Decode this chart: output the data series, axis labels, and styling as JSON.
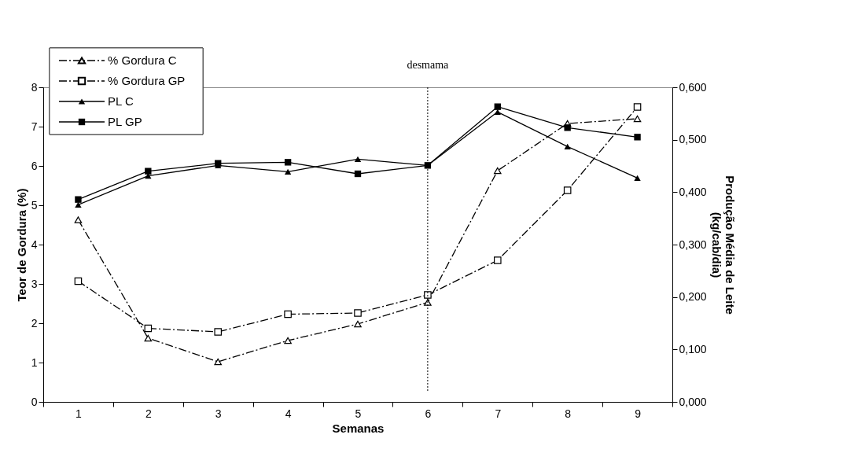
{
  "chart_data": {
    "type": "line",
    "xlabel": "Semanas",
    "ylabel": "Teor de Gordura (%)",
    "y2label": "Produção Média de Leite\n(kg/cab/dia)",
    "categories": [
      "1",
      "2",
      "3",
      "4",
      "5",
      "6",
      "7",
      "8",
      "9"
    ],
    "series": [
      {
        "name": "% Gordura C",
        "color": "#000000",
        "marker": "triangle",
        "line_style": "dashed",
        "values": [
          4.63,
          1.62,
          1.02,
          1.56,
          1.98,
          2.53,
          5.88,
          7.08,
          7.2
        ]
      },
      {
        "name": "% Gordura GP",
        "color": "#000000",
        "marker": "square",
        "line_style": "dashed",
        "values": [
          3.07,
          1.87,
          1.78,
          2.23,
          2.26,
          2.72,
          3.6,
          5.38,
          7.5
        ]
      },
      {
        "name": "PL C",
        "color": "#000000",
        "marker": "triangle",
        "line_style": "solid",
        "axis": "y2",
        "values": [
          0.376,
          0.431,
          0.451,
          0.439,
          0.463,
          0.451,
          0.553,
          0.487,
          0.427
        ]
      },
      {
        "name": "PL GP",
        "color": "#000000",
        "marker": "square",
        "line_style": "solid",
        "axis": "y2",
        "values": [
          0.386,
          0.44,
          0.455,
          0.457,
          0.435,
          0.451,
          0.563,
          0.523,
          0.505
        ]
      }
    ],
    "ylim": [
      0,
      8
    ],
    "yticks": [
      0,
      1,
      2,
      3,
      4,
      5,
      6,
      7,
      8
    ],
    "y2lim": [
      0,
      0.6
    ],
    "y2ticks": [
      {
        "value": 0,
        "label": "0,000"
      },
      {
        "value": 0.1,
        "label": "0,100"
      },
      {
        "value": 0.2,
        "label": "0,200"
      },
      {
        "value": 0.3,
        "label": "0,300"
      },
      {
        "value": 0.4,
        "label": "0,400"
      },
      {
        "value": 0.5,
        "label": "0,500"
      },
      {
        "value": 0.6,
        "label": "0,600"
      }
    ],
    "ref_lines": [
      {
        "axis": "x",
        "value": "6",
        "label": "desmama",
        "line_style": "dotted",
        "color": "#000000"
      }
    ],
    "grid": false,
    "legend": "top left"
  }
}
